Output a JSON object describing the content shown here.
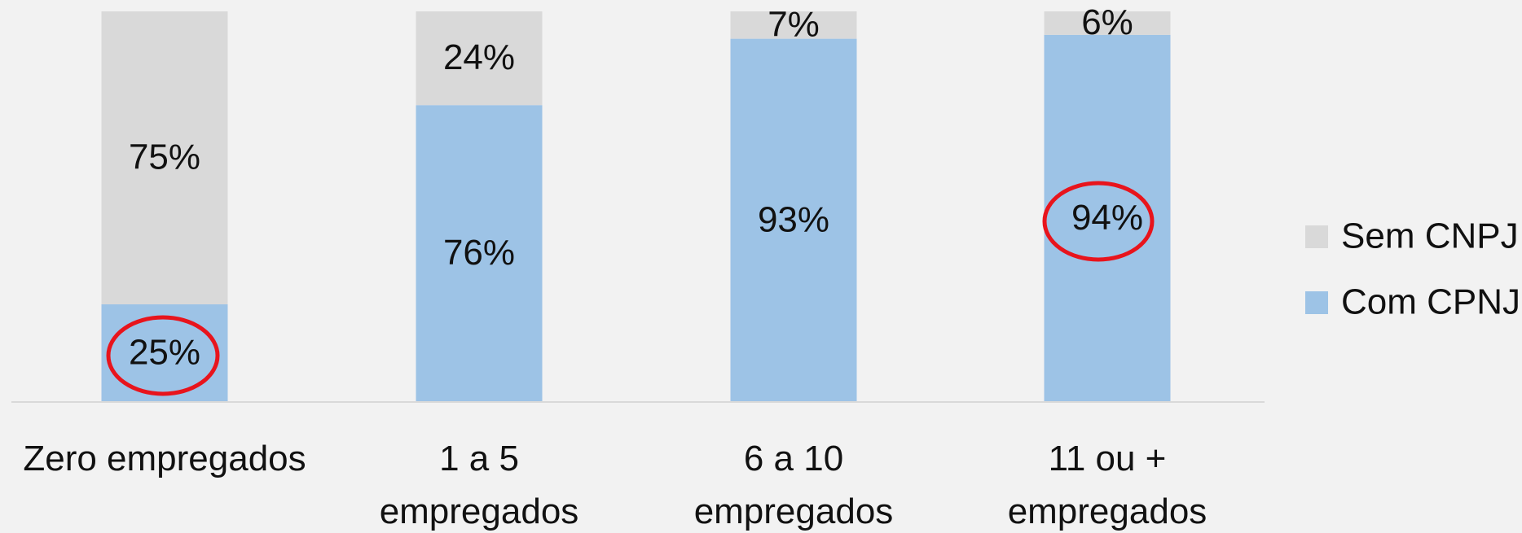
{
  "chart_data": {
    "type": "stacked_bar",
    "categories": [
      "Zero empregados",
      "1 a 5\nempregados",
      "6 a 10\nempregados",
      "11 ou +\nempregados"
    ],
    "series": [
      {
        "name": "Com CPNJ",
        "color": "#9dc3e6",
        "values": [
          25,
          76,
          93,
          94
        ]
      },
      {
        "name": "Sem CNPJ",
        "color": "#d9d9d9",
        "values": [
          75,
          24,
          7,
          6
        ]
      }
    ],
    "value_labels": [
      [
        "25%",
        "76%",
        "93%",
        "94%"
      ],
      [
        "75%",
        "24%",
        "7%",
        "6%"
      ]
    ],
    "ylim": [
      0,
      100
    ],
    "legend": "right"
  }
}
